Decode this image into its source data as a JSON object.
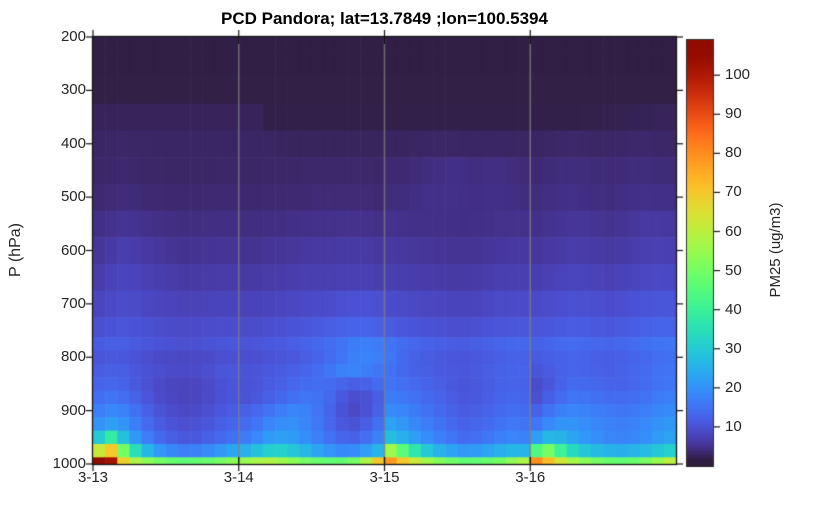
{
  "window": {
    "background": "#ffffff"
  },
  "style_colors": {
    "title_color": "#000000",
    "tick_label_color": "#262626",
    "axis_color": "#151515",
    "grid_color": "#808080"
  },
  "chart_data": {
    "type": "heatmap",
    "title": "PCD Pandora; lat=13.7849 ;lon=100.5394",
    "ylabel": "P (hPa)",
    "xlabel": "",
    "y_axis_reversed": true,
    "y_ticks": [
      200,
      300,
      400,
      500,
      600,
      700,
      800,
      900,
      1000
    ],
    "x_tick_labels": [
      "3-13",
      "3-14",
      "3-15",
      "3-16"
    ],
    "grid": "x-only",
    "colormap": "turbo",
    "colorbar": {
      "label": "PM25 (ug/m3)",
      "ticks": [
        10,
        20,
        30,
        40,
        50,
        60,
        70,
        80,
        90,
        100
      ],
      "min": 0,
      "max": 109
    },
    "time_step_hours": 2,
    "n_time_steps": 48,
    "pressure_levels": [
      200,
      250,
      300,
      350,
      400,
      450,
      500,
      550,
      600,
      650,
      700,
      750,
      775,
      800,
      825,
      850,
      875,
      900,
      925,
      950,
      975,
      1000
    ],
    "values": [
      [
        1.5,
        1.5,
        1.5,
        1.5,
        1.5,
        1.5,
        1.5,
        1.5,
        1.5,
        1.5,
        1.5,
        1.5,
        1.5,
        1.5,
        1.5,
        1.5,
        1.5,
        1.5,
        1.5,
        1.5,
        1.5,
        1.5,
        1.5,
        1.5,
        1.5,
        1.5,
        1.5,
        1.5,
        1.5,
        1.5,
        1.5,
        1.5,
        1.5,
        1.5,
        1.5,
        1.5,
        1.5,
        1.5,
        1.5,
        1.5,
        1.5,
        1.5,
        1.5,
        1.5,
        1.5,
        1.5,
        1.5,
        1.5
      ],
      [
        1.5,
        1.5,
        1.5,
        1.5,
        1.5,
        1.5,
        1.5,
        1.5,
        1.5,
        1.5,
        1.5,
        1.5,
        1.5,
        1.5,
        1.5,
        1.5,
        1.5,
        1.5,
        1.5,
        1.5,
        1.5,
        1.5,
        1.5,
        1.5,
        1.5,
        1.5,
        1.5,
        1.5,
        1.5,
        1.5,
        1.5,
        1.5,
        1.5,
        1.5,
        1.5,
        1.5,
        1.5,
        1.5,
        1.5,
        1.5,
        1.5,
        1.5,
        1.5,
        1.5,
        1.5,
        1.5,
        1.5,
        1.5
      ],
      [
        1.6,
        1.6,
        1.6,
        1.6,
        1.6,
        1.6,
        1.6,
        1.6,
        1.6,
        1.6,
        1.6,
        1.6,
        1.6,
        1.6,
        1.6,
        1.6,
        1.6,
        1.6,
        1.6,
        1.6,
        1.6,
        1.6,
        1.6,
        1.6,
        1.6,
        1.6,
        1.6,
        1.6,
        1.6,
        1.6,
        1.6,
        1.6,
        1.6,
        1.6,
        1.6,
        1.6,
        1.6,
        1.6,
        1.6,
        1.6,
        1.6,
        1.6,
        1.6,
        1.6,
        1.6,
        1.6,
        1.6,
        1.6
      ],
      [
        2.4,
        2.4,
        2.4,
        2.4,
        2.4,
        2.4,
        2.4,
        2.4,
        2.4,
        2.4,
        2.4,
        2.4,
        2.4,
        2.4,
        1.7,
        1.7,
        1.7,
        1.7,
        1.7,
        1.7,
        1.7,
        1.7,
        1.7,
        1.7,
        1.7,
        1.7,
        1.7,
        1.7,
        1.7,
        1.7,
        1.7,
        1.7,
        1.7,
        1.7,
        1.7,
        1.7,
        1.7,
        1.7,
        1.7,
        1.7,
        1.8,
        1.8,
        1.9,
        2.0,
        2.1,
        2.2,
        2.3,
        2.4
      ],
      [
        2.8,
        2.9,
        3.0,
        2.9,
        2.9,
        2.8,
        2.8,
        2.8,
        2.8,
        2.8,
        2.8,
        2.8,
        2.8,
        2.8,
        2.7,
        2.6,
        2.5,
        2.5,
        2.5,
        2.5,
        2.5,
        2.5,
        2.5,
        2.5,
        2.6,
        2.6,
        2.7,
        2.8,
        2.9,
        2.9,
        2.8,
        2.8,
        2.8,
        2.8,
        2.7,
        2.7,
        2.8,
        2.9,
        3.0,
        3.1,
        3.0,
        2.9,
        2.9,
        3.0,
        3.1,
        3.1,
        3.0,
        3.0
      ],
      [
        3.0,
        3.1,
        3.2,
        3.1,
        3.0,
        3.0,
        2.9,
        2.9,
        2.9,
        2.9,
        3.0,
        3.0,
        2.9,
        2.9,
        3.0,
        3.0,
        3.0,
        3.1,
        3.1,
        3.1,
        3.1,
        3.1,
        3.1,
        3.0,
        3.4,
        3.5,
        3.7,
        4.0,
        4.3,
        4.4,
        4.3,
        4.1,
        4.2,
        4.2,
        3.9,
        3.6,
        3.5,
        3.7,
        3.9,
        4.0,
        3.9,
        3.7,
        3.6,
        3.7,
        3.9,
        3.9,
        3.7,
        3.7
      ],
      [
        3.4,
        3.6,
        3.8,
        3.7,
        3.5,
        3.4,
        3.3,
        3.3,
        3.3,
        3.4,
        3.5,
        3.5,
        3.3,
        3.3,
        3.4,
        3.4,
        3.5,
        3.5,
        3.6,
        3.6,
        3.6,
        3.6,
        3.6,
        3.5,
        3.9,
        4.0,
        4.2,
        4.5,
        4.6,
        4.6,
        4.4,
        4.3,
        4.4,
        4.4,
        4.2,
        4.0,
        4.0,
        4.2,
        4.4,
        4.5,
        4.3,
        4.1,
        4.0,
        4.2,
        4.4,
        4.5,
        4.4,
        4.4
      ],
      [
        4.4,
        4.8,
        5.2,
        5.0,
        4.7,
        4.4,
        4.2,
        4.1,
        4.1,
        4.2,
        4.3,
        4.3,
        4.1,
        4.1,
        4.3,
        4.3,
        4.4,
        4.6,
        4.7,
        4.7,
        4.8,
        4.8,
        4.7,
        4.5,
        4.8,
        4.7,
        4.6,
        4.6,
        4.5,
        4.4,
        4.3,
        4.4,
        4.6,
        4.8,
        4.8,
        4.7,
        4.6,
        4.9,
        5.1,
        5.4,
        5.4,
        5.1,
        4.9,
        5.2,
        5.6,
        5.9,
        5.9,
        5.8
      ],
      [
        5.4,
        6.2,
        6.8,
        6.5,
        6.0,
        5.6,
        5.2,
        5.0,
        5.0,
        5.1,
        5.3,
        5.3,
        5.0,
        5.0,
        5.3,
        5.4,
        5.6,
        5.8,
        5.9,
        5.9,
        6.1,
        6.2,
        6.1,
        5.8,
        5.9,
        5.8,
        5.6,
        5.5,
        5.3,
        5.2,
        5.1,
        5.2,
        5.5,
        5.7,
        5.8,
        5.8,
        5.6,
        6.0,
        6.2,
        6.6,
        6.4,
        6.1,
        5.9,
        6.2,
        6.6,
        7.0,
        7.1,
        7.0
      ],
      [
        6.6,
        7.4,
        7.9,
        7.6,
        7.2,
        6.8,
        6.4,
        6.2,
        6.2,
        6.3,
        6.4,
        6.4,
        6.1,
        6.1,
        6.4,
        6.5,
        6.7,
        6.9,
        7.0,
        6.9,
        7.1,
        7.2,
        7.1,
        6.8,
        7.0,
        6.8,
        6.6,
        6.5,
        6.3,
        6.2,
        6.1,
        6.3,
        6.6,
        6.9,
        7.0,
        7.0,
        6.8,
        7.2,
        7.5,
        7.9,
        7.7,
        7.4,
        7.2,
        7.5,
        7.9,
        8.3,
        8.5,
        8.4
      ],
      [
        8.0,
        8.6,
        9.0,
        8.7,
        8.3,
        7.9,
        7.6,
        7.4,
        7.4,
        7.6,
        7.8,
        7.8,
        7.5,
        7.5,
        7.8,
        8.0,
        8.3,
        8.6,
        8.9,
        9.1,
        9.5,
        9.9,
        9.9,
        9.5,
        9.1,
        8.7,
        8.4,
        8.2,
        8.0,
        7.8,
        7.7,
        7.9,
        8.3,
        8.7,
        8.9,
        8.9,
        8.6,
        9.0,
        9.4,
        9.8,
        9.6,
        9.3,
        9.1,
        9.4,
        9.9,
        10.3,
        10.6,
        10.5
      ],
      [
        9.5,
        10.1,
        10.5,
        10.1,
        9.7,
        9.2,
        8.9,
        8.7,
        8.8,
        9.0,
        9.2,
        9.2,
        9.0,
        9.0,
        9.4,
        9.7,
        10.1,
        10.7,
        11.2,
        11.8,
        12.3,
        12.7,
        12.6,
        12.1,
        11.4,
        10.7,
        10.3,
        9.9,
        9.7,
        9.4,
        9.3,
        9.6,
        10.0,
        10.5,
        10.7,
        10.7,
        10.4,
        10.8,
        11.3,
        11.6,
        11.4,
        11.0,
        10.8,
        11.2,
        11.7,
        12.3,
        12.8,
        12.7
      ],
      [
        11.5,
        12.0,
        11.8,
        11.2,
        10.6,
        10.1,
        9.8,
        9.6,
        9.7,
        10.0,
        10.5,
        10.7,
        10.3,
        10.5,
        11.0,
        11.3,
        11.9,
        12.6,
        13.4,
        14.3,
        15.2,
        16.5,
        17.0,
        16.4,
        15.3,
        14.0,
        13.1,
        12.5,
        12.0,
        11.7,
        11.5,
        11.8,
        12.4,
        13.0,
        13.3,
        13.2,
        12.4,
        12.9,
        13.5,
        13.9,
        13.6,
        13.2,
        12.9,
        13.3,
        13.9,
        14.6,
        15.2,
        15.4
      ],
      [
        10.5,
        11.0,
        10.8,
        10.0,
        9.3,
        8.8,
        8.5,
        8.4,
        8.5,
        8.9,
        9.5,
        9.8,
        9.3,
        9.5,
        10.0,
        10.4,
        11.0,
        11.8,
        12.8,
        14.0,
        15.5,
        17.1,
        17.6,
        16.9,
        15.6,
        13.6,
        12.4,
        11.6,
        11.1,
        10.8,
        10.5,
        10.9,
        11.4,
        12.0,
        12.4,
        12.3,
        11.5,
        12.0,
        12.5,
        12.9,
        12.6,
        12.1,
        11.8,
        12.2,
        12.8,
        13.6,
        14.4,
        14.6
      ],
      [
        11.6,
        12.1,
        11.8,
        10.8,
        9.9,
        9.3,
        8.9,
        8.8,
        8.9,
        9.5,
        10.4,
        10.8,
        10.1,
        10.4,
        11.0,
        11.4,
        12.1,
        13.0,
        14.1,
        15.6,
        17.3,
        17.8,
        16.8,
        15.5,
        14.8,
        13.4,
        12.4,
        11.8,
        11.3,
        11.0,
        10.8,
        11.2,
        11.8,
        12.4,
        12.8,
        12.6,
        10.6,
        11.4,
        12.3,
        12.9,
        12.6,
        12.3,
        11.9,
        12.4,
        13.1,
        13.9,
        14.8,
        15.1
      ],
      [
        12.6,
        13.1,
        12.5,
        11.1,
        9.8,
        8.8,
        8.1,
        7.9,
        8.1,
        8.8,
        9.9,
        10.5,
        10.0,
        10.5,
        11.4,
        12.1,
        13.1,
        14.0,
        14.4,
        14.0,
        13.0,
        11.9,
        12.3,
        13.8,
        15.3,
        14.5,
        13.5,
        12.6,
        11.8,
        11.1,
        10.6,
        10.9,
        11.6,
        12.4,
        12.7,
        12.3,
        9.1,
        10.6,
        12.5,
        13.8,
        13.6,
        13.1,
        12.7,
        12.5,
        13.1,
        14.1,
        15.0,
        15.5
      ],
      [
        14.4,
        15.3,
        14.3,
        12.4,
        10.5,
        9.1,
        8.3,
        7.9,
        8.1,
        8.8,
        9.9,
        10.6,
        10.1,
        10.9,
        12.1,
        13.3,
        14.6,
        15.5,
        15.0,
        13.4,
        11.0,
        9.3,
        9.8,
        11.8,
        16.5,
        15.9,
        14.8,
        13.6,
        12.6,
        11.6,
        10.8,
        11.1,
        11.9,
        12.8,
        13.3,
        12.8,
        9.5,
        11.9,
        14.1,
        15.4,
        15.1,
        14.6,
        14.1,
        13.8,
        14.3,
        15.3,
        16.3,
        16.9
      ],
      [
        16.9,
        18.4,
        17.3,
        14.6,
        12.1,
        10.3,
        9.1,
        8.6,
        8.8,
        9.6,
        10.8,
        11.6,
        12.1,
        13.4,
        15.3,
        16.6,
        17.9,
        17.5,
        15.6,
        12.8,
        10.0,
        8.6,
        9.9,
        12.4,
        18.8,
        17.9,
        16.5,
        15.0,
        13.6,
        12.4,
        11.4,
        11.8,
        12.6,
        13.6,
        14.3,
        13.8,
        12.5,
        15.0,
        17.1,
        17.9,
        17.4,
        16.6,
        16.0,
        15.5,
        16.0,
        17.0,
        18.1,
        18.9
      ],
      [
        20.0,
        22.3,
        20.3,
        16.8,
        13.8,
        11.5,
        10.1,
        9.5,
        9.8,
        10.6,
        11.9,
        13.0,
        13.8,
        15.5,
        17.9,
        19.4,
        19.6,
        18.1,
        15.8,
        13.1,
        10.9,
        10.1,
        11.9,
        14.5,
        22.5,
        20.6,
        18.6,
        16.6,
        15.0,
        13.6,
        12.5,
        12.9,
        13.9,
        15.0,
        15.8,
        15.3,
        15.6,
        18.5,
        20.3,
        20.4,
        19.3,
        18.1,
        17.3,
        16.8,
        17.4,
        18.5,
        19.9,
        20.9
      ],
      [
        30.0,
        38.0,
        28.0,
        21.0,
        16.6,
        13.6,
        11.8,
        10.9,
        11.1,
        12.1,
        13.6,
        15.0,
        16.3,
        18.5,
        21.1,
        22.1,
        21.4,
        19.4,
        17.1,
        14.8,
        12.9,
        12.4,
        14.5,
        17.4,
        27.5,
        24.8,
        21.8,
        19.0,
        17.0,
        15.4,
        14.1,
        14.5,
        15.6,
        17.0,
        17.9,
        17.5,
        21.9,
        26.3,
        25.6,
        23.1,
        20.9,
        19.3,
        18.1,
        17.6,
        18.3,
        19.5,
        21.1,
        22.8
      ],
      [
        62.0,
        70.0,
        50.0,
        34.5,
        26.0,
        21.0,
        18.3,
        17.0,
        17.4,
        18.8,
        21.0,
        23.3,
        24.9,
        28.0,
        31.0,
        31.3,
        29.2,
        26.1,
        23.0,
        20.4,
        18.7,
        19.0,
        22.1,
        26.0,
        56.0,
        46.0,
        36.6,
        29.6,
        25.4,
        22.7,
        21.0,
        21.5,
        23.0,
        24.9,
        26.3,
        25.7,
        44.0,
        50.0,
        40.6,
        33.2,
        29.2,
        26.9,
        25.3,
        24.7,
        25.5,
        27.1,
        29.2,
        31.4
      ],
      [
        112,
        102,
        68,
        58,
        53,
        50,
        48,
        47,
        47,
        48,
        50,
        53,
        55,
        57,
        58,
        56,
        53,
        50,
        48,
        47,
        47,
        50,
        58,
        70,
        78,
        70,
        62,
        56,
        52,
        49,
        47,
        47,
        48,
        50,
        54,
        58,
        80,
        72,
        63,
        57,
        53,
        50,
        48,
        47,
        48,
        51,
        55,
        60
      ]
    ]
  }
}
